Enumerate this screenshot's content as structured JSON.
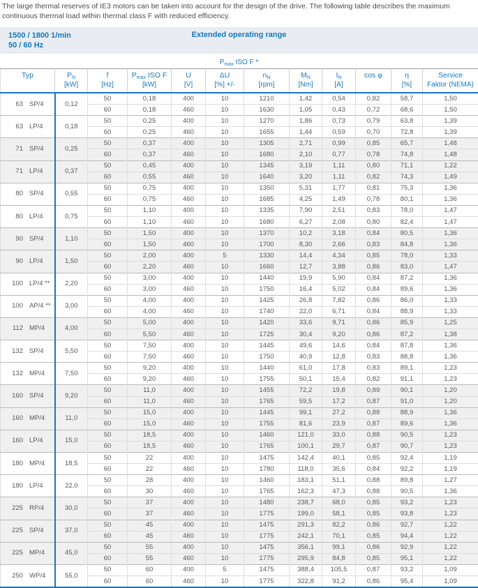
{
  "intro": "The large thermal reserves of IE3 motors can be taken into account for the design of the drive. The following table describes the maximum continuous thermal load within thermal class F with reduced efficiency.",
  "band": {
    "left_line1": "1500 / 1800 1/min",
    "left_line2": "50 / 60 Hz",
    "center": "Extended operating range"
  },
  "pmax_note": {
    "base": "P",
    "sub": "max",
    "suffix": " ISO F *"
  },
  "colors": {
    "accent_blue": "#1478be",
    "band_background": "#e9edf2",
    "row_stripe": "#f0f0f1",
    "body_text": "#57585a"
  },
  "table": {
    "columns": [
      {
        "id": "typ",
        "base": "Typ",
        "sub": "",
        "suffix": "",
        "unit": ""
      },
      {
        "id": "pn",
        "base": "P",
        "sub": "N",
        "suffix": "",
        "unit": "[kW]"
      },
      {
        "id": "f",
        "base": "f",
        "sub": "",
        "suffix": "",
        "unit": "[Hz]"
      },
      {
        "id": "pmax",
        "base": "P",
        "sub": "max",
        "suffix": " ISO F",
        "unit": "[kW]"
      },
      {
        "id": "u",
        "base": "U",
        "sub": "",
        "suffix": "",
        "unit": "[V]"
      },
      {
        "id": "du",
        "base": "ΔU",
        "sub": "",
        "suffix": "",
        "unit": "[%] +/-"
      },
      {
        "id": "nn",
        "base": "n",
        "sub": "N",
        "suffix": "",
        "unit": "[rpm]"
      },
      {
        "id": "mn",
        "base": "M",
        "sub": "N",
        "suffix": "",
        "unit": "[Nm]"
      },
      {
        "id": "in",
        "base": "I",
        "sub": "N",
        "suffix": "",
        "unit": "[A]"
      },
      {
        "id": "cosphi",
        "base": "cos φ",
        "sub": "",
        "suffix": "",
        "unit": ""
      },
      {
        "id": "eta",
        "base": "η",
        "sub": "",
        "suffix": "",
        "unit": "[%]"
      },
      {
        "id": "service",
        "base": "Service",
        "sub": "",
        "suffix": "",
        "unit": "Faktor (NEMA)"
      }
    ],
    "groups": [
      {
        "frame": "63",
        "type": "SP/4",
        "pn": "0,12",
        "shaded": false,
        "rows": [
          [
            "50",
            "0,18",
            "400",
            "10",
            "1210",
            "1,42",
            "0,54",
            "0,82",
            "58,7",
            "1,50"
          ],
          [
            "60",
            "0,18",
            "460",
            "10",
            "1630",
            "1,05",
            "0,43",
            "0,72",
            "68,6",
            "1,50"
          ]
        ]
      },
      {
        "frame": "63",
        "type": "LP/4",
        "pn": "0,18",
        "shaded": false,
        "rows": [
          [
            "50",
            "0,25",
            "400",
            "10",
            "1270",
            "1,86",
            "0,73",
            "0,79",
            "63,8",
            "1,39"
          ],
          [
            "60",
            "0,25",
            "460",
            "10",
            "1655",
            "1,44",
            "0,59",
            "0,70",
            "72,8",
            "1,39"
          ]
        ]
      },
      {
        "frame": "71",
        "type": "SP/4",
        "pn": "0,25",
        "shaded": true,
        "rows": [
          [
            "50",
            "0,37",
            "400",
            "10",
            "1305",
            "2,71",
            "0,99",
            "0,85",
            "65,7",
            "1,48"
          ],
          [
            "60",
            "0,37",
            "460",
            "10",
            "1680",
            "2,10",
            "0,77",
            "0,78",
            "74,8",
            "1,48"
          ]
        ]
      },
      {
        "frame": "71",
        "type": "LP/4",
        "pn": "0,37",
        "shaded": true,
        "rows": [
          [
            "50",
            "0,45",
            "400",
            "10",
            "1345",
            "3,19",
            "1,11",
            "0,80",
            "71,1",
            "1,22"
          ],
          [
            "60",
            "0,55",
            "460",
            "10",
            "1640",
            "3,20",
            "1,11",
            "0,82",
            "74,3",
            "1,49"
          ]
        ]
      },
      {
        "frame": "80",
        "type": "SP/4",
        "pn": "0,55",
        "shaded": false,
        "rows": [
          [
            "50",
            "0,75",
            "400",
            "10",
            "1350",
            "5,31",
            "1,77",
            "0,81",
            "75,3",
            "1,36"
          ],
          [
            "60",
            "0,75",
            "460",
            "10",
            "1685",
            "4,25",
            "1,49",
            "0,78",
            "80,1",
            "1,36"
          ]
        ]
      },
      {
        "frame": "80",
        "type": "LP/4",
        "pn": "0,75",
        "shaded": false,
        "rows": [
          [
            "50",
            "1,10",
            "400",
            "10",
            "1335",
            "7,90",
            "2,51",
            "0,83",
            "78,0",
            "1,47"
          ],
          [
            "60",
            "1,10",
            "460",
            "10",
            "1680",
            "6,27",
            "2,08",
            "0,80",
            "82,4",
            "1,47"
          ]
        ]
      },
      {
        "frame": "90",
        "type": "SP/4",
        "pn": "1,10",
        "shaded": true,
        "rows": [
          [
            "50",
            "1,50",
            "400",
            "10",
            "1370",
            "10,2",
            "3,18",
            "0,84",
            "80,5",
            "1,36"
          ],
          [
            "60",
            "1,50",
            "460",
            "10",
            "1700",
            "8,30",
            "2,66",
            "0,83",
            "84,8",
            "1,36"
          ]
        ]
      },
      {
        "frame": "90",
        "type": "LP/4",
        "pn": "1,50",
        "shaded": true,
        "rows": [
          [
            "50",
            "2,00",
            "400",
            "5",
            "1330",
            "14,4",
            "4,34",
            "0,85",
            "78,0",
            "1,33"
          ],
          [
            "60",
            "2,20",
            "460",
            "10",
            "1660",
            "12,7",
            "3,88",
            "0,86",
            "83,0",
            "1,47"
          ]
        ]
      },
      {
        "frame": "100",
        "type": "LP/4 **",
        "pn": "2,20",
        "shaded": false,
        "rows": [
          [
            "50",
            "3,00",
            "400",
            "10",
            "1440",
            "19,9",
            "5,90",
            "0,84",
            "87,2",
            "1,36"
          ],
          [
            "60",
            "3,00",
            "460",
            "10",
            "1750",
            "16,4",
            "5,02",
            "0,84",
            "89,6",
            "1,36"
          ]
        ]
      },
      {
        "frame": "100",
        "type": "AP/4 **",
        "pn": "3,00",
        "shaded": false,
        "rows": [
          [
            "50",
            "4,00",
            "400",
            "10",
            "1425",
            "26,8",
            "7,82",
            "0,86",
            "86,0",
            "1,33"
          ],
          [
            "60",
            "4,00",
            "460",
            "10",
            "1740",
            "22,0",
            "6,71",
            "0,84",
            "88,9",
            "1,33"
          ]
        ]
      },
      {
        "frame": "112",
        "type": "MP/4",
        "pn": "4,00",
        "shaded": true,
        "rows": [
          [
            "50",
            "5,00",
            "400",
            "10",
            "1420",
            "33,6",
            "9,71",
            "0,86",
            "85,9",
            "1,25"
          ],
          [
            "60",
            "5,50",
            "460",
            "10",
            "1725",
            "30,4",
            "9,20",
            "0,86",
            "87,2",
            "1,38"
          ]
        ]
      },
      {
        "frame": "132",
        "type": "SP/4",
        "pn": "5,50",
        "shaded": false,
        "rows": [
          [
            "50",
            "7,50",
            "400",
            "10",
            "1445",
            "49,6",
            "14,6",
            "0,84",
            "87,8",
            "1,36"
          ],
          [
            "60",
            "7,50",
            "460",
            "10",
            "1750",
            "40,9",
            "12,8",
            "0,83",
            "88,8",
            "1,36"
          ]
        ]
      },
      {
        "frame": "132",
        "type": "MP/4",
        "pn": "7,50",
        "shaded": false,
        "rows": [
          [
            "50",
            "9,20",
            "400",
            "10",
            "1440",
            "61,0",
            "17,8",
            "0,83",
            "89,1",
            "1,23"
          ],
          [
            "60",
            "9,20",
            "460",
            "10",
            "1755",
            "50,1",
            "15,4",
            "0,82",
            "91,1",
            "1,23"
          ]
        ]
      },
      {
        "frame": "160",
        "type": "SP/4",
        "pn": "9,20",
        "shaded": true,
        "rows": [
          [
            "50",
            "11,0",
            "400",
            "10",
            "1455",
            "72,2",
            "19,8",
            "0,89",
            "90,1",
            "1,20"
          ],
          [
            "60",
            "11,0",
            "460",
            "10",
            "1765",
            "59,5",
            "17,2",
            "0,87",
            "91,0",
            "1,20"
          ]
        ]
      },
      {
        "frame": "160",
        "type": "MP/4",
        "pn": "11,0",
        "shaded": true,
        "rows": [
          [
            "50",
            "15,0",
            "400",
            "10",
            "1445",
            "99,1",
            "27,2",
            "0,88",
            "88,9",
            "1,36"
          ],
          [
            "60",
            "15,0",
            "460",
            "10",
            "1755",
            "81,6",
            "23,9",
            "0,87",
            "89,6",
            "1,36"
          ]
        ]
      },
      {
        "frame": "160",
        "type": "LP/4",
        "pn": "15,0",
        "shaded": true,
        "rows": [
          [
            "50",
            "18,5",
            "400",
            "10",
            "1460",
            "121,0",
            "33,0",
            "0,88",
            "90,5",
            "1,23"
          ],
          [
            "60",
            "18,5",
            "460",
            "10",
            "1765",
            "100,1",
            "29,7",
            "0,87",
            "90,7",
            "1,23"
          ]
        ]
      },
      {
        "frame": "180",
        "type": "MP/4",
        "pn": "18,5",
        "shaded": false,
        "rows": [
          [
            "50",
            "22",
            "400",
            "10",
            "1475",
            "142,4",
            "40,1",
            "0,85",
            "92,4",
            "1,19"
          ],
          [
            "60",
            "22",
            "460",
            "10",
            "1780",
            "118,0",
            "35,6",
            "0,84",
            "92,2",
            "1,19"
          ]
        ]
      },
      {
        "frame": "180",
        "type": "LP/4",
        "pn": "22,0",
        "shaded": false,
        "rows": [
          [
            "50",
            "28",
            "400",
            "10",
            "1460",
            "183,1",
            "51,1",
            "0,88",
            "89,8",
            "1,27"
          ],
          [
            "60",
            "30",
            "460",
            "10",
            "1765",
            "162,3",
            "47,3",
            "0,88",
            "90,5",
            "1,36"
          ]
        ]
      },
      {
        "frame": "225",
        "type": "RP/4",
        "pn": "30,0",
        "shaded": true,
        "rows": [
          [
            "50",
            "37",
            "400",
            "10",
            "1480",
            "238,7",
            "68,0",
            "0,85",
            "93,2",
            "1,23"
          ],
          [
            "60",
            "37",
            "460",
            "10",
            "1775",
            "199,0",
            "58,1",
            "0,85",
            "93,8",
            "1,23"
          ]
        ]
      },
      {
        "frame": "225",
        "type": "SP/4",
        "pn": "37,0",
        "shaded": true,
        "rows": [
          [
            "50",
            "45",
            "400",
            "10",
            "1475",
            "291,3",
            "82,2",
            "0,86",
            "92,7",
            "1,22"
          ],
          [
            "60",
            "45",
            "460",
            "10",
            "1775",
            "242,1",
            "70,1",
            "0,85",
            "94,4",
            "1,22"
          ]
        ]
      },
      {
        "frame": "225",
        "type": "MP/4",
        "pn": "45,0",
        "shaded": true,
        "rows": [
          [
            "50",
            "55",
            "400",
            "10",
            "1475",
            "356,1",
            "99,1",
            "0,86",
            "92,9",
            "1,22"
          ],
          [
            "60",
            "55",
            "460",
            "10",
            "1775",
            "295,9",
            "84,8",
            "0,85",
            "95,1",
            "1,22"
          ]
        ]
      },
      {
        "frame": "250",
        "type": "WP/4",
        "pn": "55,0",
        "shaded": false,
        "rows": [
          [
            "50",
            "60",
            "400",
            "5",
            "1475",
            "388,4",
            "105,5",
            "0,87",
            "93,2",
            "1,09"
          ],
          [
            "60",
            "60",
            "460",
            "10",
            "1775",
            "322,8",
            "91,2",
            "0,86",
            "95,4",
            "1,09"
          ]
        ]
      }
    ]
  }
}
